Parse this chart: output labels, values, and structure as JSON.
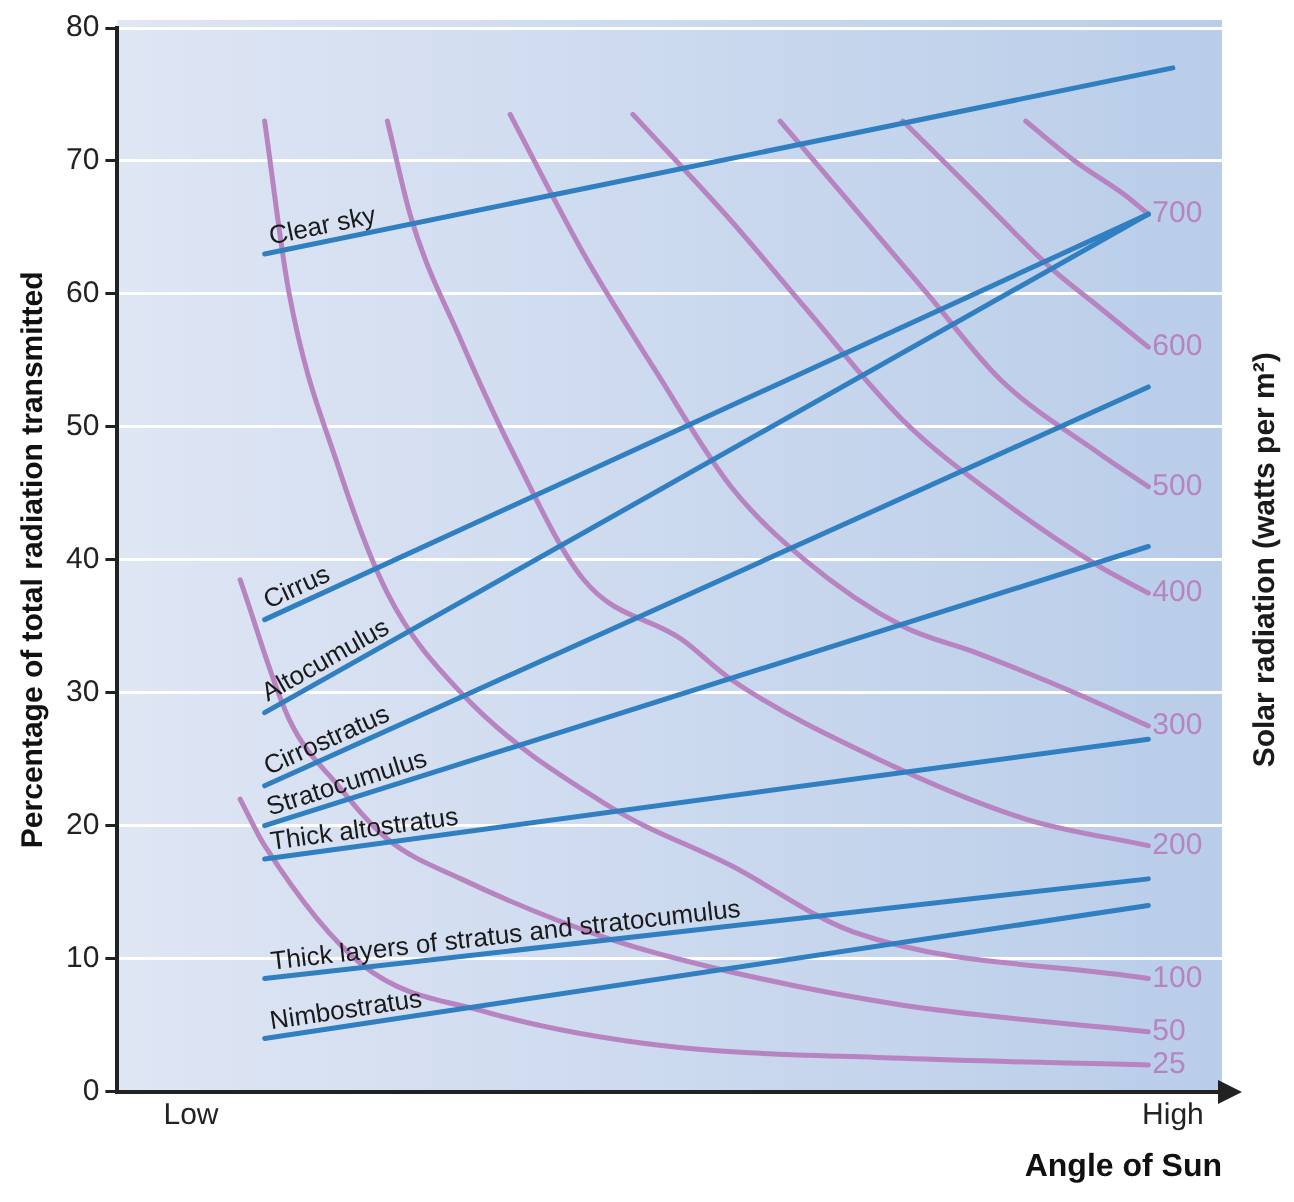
{
  "chart_data": {
    "type": "line",
    "xlabel": "Angle of Sun",
    "ylabel": "Percentage of total radiation transmitted",
    "y2label": "Solar radiation (watts per m²)",
    "categories": [
      null,
      null,
      null,
      "Low",
      null,
      null,
      null,
      null,
      null,
      null,
      null,
      null,
      null,
      null,
      null,
      null,
      null,
      null,
      null,
      null,
      null,
      null,
      null,
      null,
      null,
      null,
      null,
      null,
      null,
      null,
      null,
      null,
      null,
      null,
      null,
      null,
      null,
      null,
      null,
      null,
      null,
      null,
      null,
      "High",
      null,
      null
    ],
    "ylim": [
      0,
      80
    ],
    "yticks": [
      0,
      10,
      20,
      30,
      40,
      50,
      60,
      70,
      80
    ],
    "grid": "y",
    "series": [
      {
        "name": "Clear sky",
        "color": "#2f7fc1",
        "values": [
          null,
          null,
          null,
          null,
          null,
          null,
          63,
          null,
          null,
          null,
          null,
          null,
          null,
          null,
          null,
          null,
          null,
          null,
          null,
          null,
          null,
          null,
          null,
          null,
          null,
          null,
          null,
          null,
          null,
          null,
          null,
          null,
          null,
          null,
          null,
          null,
          null,
          null,
          null,
          null,
          null,
          null,
          null,
          77,
          null,
          null
        ]
      },
      {
        "name": "Cirrus",
        "color": "#2f7fc1",
        "values": [
          null,
          null,
          null,
          null,
          null,
          null,
          35.5,
          null,
          null,
          null,
          null,
          null,
          null,
          null,
          null,
          null,
          null,
          null,
          null,
          null,
          null,
          null,
          null,
          null,
          null,
          null,
          null,
          null,
          null,
          null,
          null,
          null,
          null,
          null,
          null,
          null,
          null,
          null,
          null,
          null,
          null,
          null,
          66,
          null,
          null,
          null
        ]
      },
      {
        "name": "Altocumulus",
        "color": "#2f7fc1",
        "values": [
          null,
          null,
          null,
          null,
          null,
          null,
          28.5,
          null,
          null,
          null,
          null,
          null,
          null,
          null,
          null,
          null,
          null,
          null,
          null,
          null,
          null,
          null,
          null,
          null,
          null,
          null,
          null,
          null,
          null,
          null,
          null,
          null,
          null,
          null,
          null,
          null,
          null,
          null,
          null,
          null,
          null,
          null,
          66,
          null,
          null,
          null
        ]
      },
      {
        "name": "Cirrostratus",
        "color": "#2f7fc1",
        "values": [
          null,
          null,
          null,
          null,
          null,
          null,
          23,
          null,
          null,
          null,
          null,
          null,
          null,
          null,
          null,
          null,
          null,
          null,
          null,
          null,
          null,
          null,
          null,
          null,
          null,
          null,
          null,
          null,
          null,
          null,
          null,
          null,
          null,
          null,
          null,
          null,
          null,
          null,
          null,
          null,
          null,
          null,
          53,
          null,
          null,
          null
        ]
      },
      {
        "name": "Stratocumulus",
        "color": "#2f7fc1",
        "values": [
          null,
          null,
          null,
          null,
          null,
          null,
          20,
          null,
          null,
          null,
          null,
          null,
          null,
          null,
          null,
          null,
          null,
          null,
          null,
          null,
          null,
          null,
          null,
          null,
          null,
          null,
          null,
          null,
          null,
          null,
          null,
          null,
          null,
          null,
          null,
          null,
          null,
          null,
          null,
          null,
          null,
          null,
          41,
          null,
          null,
          null
        ]
      },
      {
        "name": "Thick altostratus",
        "color": "#2f7fc1",
        "values": [
          null,
          null,
          null,
          null,
          null,
          null,
          17.5,
          null,
          null,
          null,
          null,
          null,
          null,
          null,
          null,
          null,
          null,
          null,
          null,
          null,
          null,
          null,
          null,
          null,
          null,
          null,
          null,
          null,
          null,
          null,
          null,
          null,
          null,
          null,
          null,
          null,
          null,
          null,
          null,
          null,
          null,
          null,
          26.5,
          null,
          null,
          null
        ]
      },
      {
        "name": "Thick layers of stratus and stratocumulus",
        "color": "#2f7fc1",
        "values": [
          null,
          null,
          null,
          null,
          null,
          null,
          8.5,
          null,
          null,
          null,
          null,
          null,
          null,
          null,
          null,
          null,
          null,
          null,
          null,
          null,
          null,
          null,
          null,
          null,
          null,
          null,
          null,
          null,
          null,
          null,
          null,
          null,
          null,
          null,
          null,
          null,
          null,
          null,
          null,
          null,
          null,
          null,
          16,
          null,
          null,
          null
        ]
      },
      {
        "name": "Nimbostratus",
        "color": "#2f7fc1",
        "values": [
          null,
          null,
          null,
          null,
          null,
          null,
          4,
          null,
          null,
          null,
          null,
          null,
          null,
          null,
          null,
          null,
          null,
          null,
          null,
          null,
          null,
          null,
          null,
          null,
          null,
          null,
          null,
          null,
          null,
          null,
          null,
          null,
          null,
          null,
          null,
          null,
          null,
          null,
          null,
          null,
          null,
          null,
          14,
          null,
          null,
          null
        ]
      },
      {
        "name": "700",
        "color": "#b783c0",
        "values": [
          null,
          null,
          null,
          null,
          null,
          null,
          null,
          null,
          null,
          null,
          null,
          null,
          null,
          null,
          null,
          null,
          null,
          null,
          null,
          null,
          null,
          null,
          null,
          null,
          null,
          null,
          null,
          null,
          null,
          null,
          null,
          null,
          null,
          null,
          null,
          null,
          null,
          73,
          null,
          70,
          null,
          67.5,
          66,
          null,
          null,
          null
        ]
      },
      {
        "name": "600",
        "color": "#b783c0",
        "values": [
          null,
          null,
          null,
          null,
          null,
          null,
          null,
          null,
          null,
          null,
          null,
          null,
          null,
          null,
          null,
          null,
          null,
          null,
          null,
          null,
          null,
          null,
          null,
          null,
          null,
          null,
          null,
          null,
          null,
          null,
          null,
          null,
          73,
          null,
          null,
          67.5,
          null,
          null,
          62,
          null,
          59,
          null,
          56,
          null,
          null,
          null
        ]
      },
      {
        "name": "500",
        "color": "#b783c0",
        "values": [
          null,
          null,
          null,
          null,
          null,
          null,
          null,
          null,
          null,
          null,
          null,
          null,
          null,
          null,
          null,
          null,
          null,
          null,
          null,
          null,
          null,
          null,
          null,
          null,
          null,
          null,
          null,
          73,
          null,
          null,
          66.5,
          null,
          null,
          60,
          null,
          null,
          53.5,
          null,
          null,
          null,
          48,
          null,
          45.5,
          null,
          null,
          null
        ]
      },
      {
        "name": "400",
        "color": "#b783c0",
        "values": [
          null,
          null,
          null,
          null,
          null,
          null,
          null,
          null,
          null,
          null,
          null,
          null,
          null,
          null,
          null,
          null,
          null,
          null,
          null,
          null,
          null,
          73.5,
          null,
          null,
          null,
          65.5,
          null,
          null,
          59,
          null,
          null,
          null,
          50.5,
          null,
          null,
          null,
          44.5,
          null,
          null,
          null,
          39.5,
          null,
          37.5,
          null,
          null,
          null
        ]
      },
      {
        "name": "300",
        "color": "#b783c0",
        "values": [
          null,
          null,
          null,
          null,
          null,
          null,
          null,
          null,
          null,
          null,
          null,
          null,
          null,
          null,
          null,
          null,
          73.5,
          null,
          null,
          63,
          null,
          null,
          54,
          null,
          null,
          45.5,
          null,
          null,
          40,
          null,
          null,
          null,
          35,
          null,
          null,
          33,
          null,
          null,
          null,
          30,
          null,
          null,
          27.5,
          null,
          null,
          null
        ]
      },
      {
        "name": "200",
        "color": "#b783c0",
        "values": [
          null,
          null,
          null,
          null,
          null,
          null,
          null,
          null,
          null,
          null,
          null,
          73,
          65.5,
          null,
          56.5,
          null,
          48.5,
          null,
          null,
          38.5,
          null,
          null,
          null,
          34,
          null,
          31,
          null,
          null,
          null,
          null,
          null,
          25,
          null,
          null,
          null,
          null,
          null,
          20.5,
          null,
          null,
          null,
          null,
          18.5,
          null,
          null,
          null
        ]
      },
      {
        "name": "100",
        "color": "#b783c0",
        "values": [
          null,
          null,
          null,
          null,
          null,
          null,
          73,
          60,
          null,
          47,
          null,
          37.5,
          null,
          null,
          30,
          null,
          null,
          null,
          null,
          null,
          21.5,
          null,
          null,
          null,
          null,
          17,
          null,
          null,
          null,
          null,
          12,
          null,
          null,
          null,
          null,
          null,
          null,
          null,
          null,
          null,
          null,
          null,
          8.5,
          null,
          null,
          null
        ]
      },
      {
        "name": "50",
        "color": "#b783c0",
        "values": [
          null,
          null,
          null,
          null,
          null,
          38.5,
          null,
          28,
          null,
          23,
          null,
          19,
          null,
          null,
          16,
          null,
          null,
          null,
          null,
          null,
          11.5,
          null,
          null,
          null,
          null,
          9,
          null,
          null,
          null,
          null,
          null,
          null,
          6.5,
          null,
          null,
          null,
          null,
          null,
          null,
          null,
          null,
          null,
          4.5,
          null,
          null,
          null
        ]
      },
      {
        "name": "25",
        "color": "#b783c0",
        "values": [
          null,
          null,
          null,
          null,
          null,
          22,
          18.5,
          null,
          null,
          null,
          9.5,
          null,
          null,
          null,
          null,
          6,
          null,
          null,
          null,
          null,
          null,
          null,
          3.5,
          null,
          null,
          null,
          null,
          null,
          null,
          null,
          null,
          null,
          2.5,
          null,
          null,
          null,
          null,
          null,
          null,
          null,
          null,
          null,
          2,
          null,
          null,
          null
        ]
      }
    ]
  }
}
